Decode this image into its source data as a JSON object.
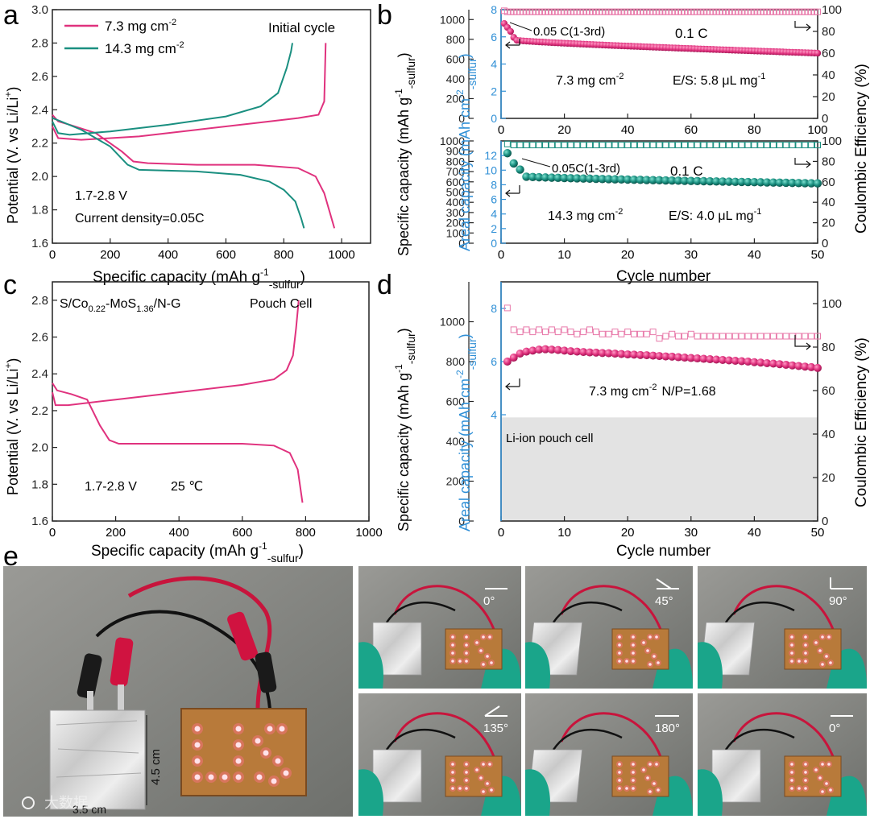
{
  "colors": {
    "pink": "#e0327e",
    "teal": "#1a8f80",
    "blue": "#2f8fd6",
    "pinkLight": "#e87aaa",
    "gray": "#e6e6e6"
  },
  "panel_letters": [
    "a",
    "b",
    "c",
    "d",
    "e"
  ],
  "chart_data": [
    {
      "id": "a",
      "type": "line",
      "title": "Initial cycle",
      "xlabel": "Specific capacity (mAh g-1-sulfur)",
      "xlabel_parts": [
        "Specific capacity (mAh g",
        "-1",
        "-sulfur",
        ")"
      ],
      "ylabel": "Potential (V. vs Li/Li+)",
      "ylabel_parts": [
        "Potential (V. vs Li/Li",
        "+",
        ")"
      ],
      "xlim": [
        0,
        1100
      ],
      "ylim": [
        1.6,
        3.0
      ],
      "xticks": [
        "0",
        "200",
        "400",
        "600",
        "800",
        "1000"
      ],
      "yticks": [
        "1.6",
        "1.8",
        "2.0",
        "2.2",
        "2.4",
        "2.6",
        "2.8",
        "3.0"
      ],
      "legend": [
        {
          "label": "7.3 mg cm-2",
          "base": "7.3 mg cm",
          "sup": "-2"
        },
        {
          "label": "14.3 mg cm-2",
          "base": "14.3 mg cm",
          "sup": "-2"
        }
      ],
      "annotations": [
        "1.7-2.8 V",
        "Current density=0.05C"
      ],
      "series": [
        {
          "name": "7.3 mg cm-2 discharge",
          "x": [
            0,
            20,
            60,
            150,
            240,
            280,
            330,
            500,
            700,
            850,
            910,
            940,
            960,
            975
          ],
          "y": [
            2.37,
            2.33,
            2.31,
            2.26,
            2.15,
            2.09,
            2.08,
            2.07,
            2.07,
            2.05,
            2.0,
            1.9,
            1.78,
            1.69
          ]
        },
        {
          "name": "7.3 mg cm-2 charge",
          "x": [
            0,
            20,
            100,
            300,
            500,
            700,
            850,
            920,
            940,
            945
          ],
          "y": [
            2.3,
            2.23,
            2.22,
            2.24,
            2.28,
            2.32,
            2.35,
            2.37,
            2.45,
            2.8
          ]
        },
        {
          "name": "14.3 mg cm-2 discharge",
          "x": [
            0,
            30,
            100,
            200,
            260,
            300,
            500,
            650,
            750,
            800,
            840,
            860,
            870
          ],
          "y": [
            2.35,
            2.33,
            2.28,
            2.18,
            2.07,
            2.04,
            2.03,
            2.01,
            1.97,
            1.92,
            1.85,
            1.75,
            1.69
          ]
        },
        {
          "name": "14.3 mg cm-2 charge",
          "x": [
            0,
            20,
            60,
            200,
            400,
            600,
            720,
            780,
            810,
            825,
            830
          ],
          "y": [
            2.33,
            2.26,
            2.25,
            2.27,
            2.31,
            2.36,
            2.42,
            2.5,
            2.65,
            2.75,
            2.8
          ]
        }
      ]
    },
    {
      "id": "b-top",
      "type": "scatter",
      "xlabel": "Cycle number",
      "ylabel_left": "Specific capacity (mAh g-1-sulfur)",
      "ylabel_left_parts": [
        "Specific capacity (mAh g",
        "-1",
        "-sulfur",
        ")"
      ],
      "ylabel_inner": "Areal capacity (mAh cm-2-sulfur)",
      "ylabel_inner_parts": [
        "Areal capacity (mAh cm",
        "-2",
        "-sulfur",
        ")"
      ],
      "ylabel_right": "Coulombic Efficiency (%)",
      "xlim": [
        0,
        100
      ],
      "ylim_specific": [
        0,
        1100
      ],
      "ylim_areal": [
        0,
        8
      ],
      "ylim_ce": [
        0,
        100
      ],
      "xticks": [
        "0",
        "20",
        "40",
        "60",
        "80",
        "100"
      ],
      "yticks_specific": [
        "0",
        "200",
        "400",
        "600",
        "800",
        "1000"
      ],
      "yticks_areal": [
        "0",
        "2",
        "4",
        "6",
        "8"
      ],
      "yticks_ce": [
        "0",
        "20",
        "40",
        "60",
        "80",
        "100"
      ],
      "annotations": [
        "0.05 C(1-3rd)",
        "0.1 C"
      ],
      "loading_label": "7.3 mg cm-2",
      "loading_base": "7.3 mg cm",
      "loading_sup": "-2",
      "es_label": "E/S: 5.8 μL mg-1",
      "es_base": "E/S: 5.8 μL mg",
      "es_sup": "-1",
      "capacity_start": [
        960,
        920,
        880,
        820,
        790
      ],
      "capacity_end": 660,
      "cycles": 100,
      "ce_value": 98
    },
    {
      "id": "b-bottom",
      "type": "scatter",
      "xlabel": "Cycle number",
      "xlim": [
        0,
        50
      ],
      "ylim_specific": [
        0,
        1000
      ],
      "ylim_areal": [
        0,
        14
      ],
      "ylim_ce": [
        0,
        100
      ],
      "xticks": [
        "0",
        "10",
        "20",
        "30",
        "40",
        "50"
      ],
      "yticks_specific": [
        "0",
        "100",
        "200",
        "300",
        "400",
        "500",
        "600",
        "700",
        "800",
        "900",
        "1000"
      ],
      "yticks_areal": [
        "0",
        "2",
        "4",
        "6",
        "8",
        "10",
        "12"
      ],
      "yticks_ce": [
        "0",
        "20",
        "40",
        "60",
        "80",
        "100"
      ],
      "annotations": [
        "0.05C(1-3rd)",
        "0.1 C"
      ],
      "loading_label": "14.3 mg cm-2",
      "loading_base": "14.3 mg cm",
      "loading_sup": "-2",
      "es_label": "E/S: 4.0 μL mg-1",
      "es_base": "E/S: 4.0 μL mg",
      "es_sup": "-1",
      "capacity_start": [
        880,
        780,
        720,
        650
      ],
      "capacity_end": 585,
      "cycles": 50,
      "ce_value": 96
    },
    {
      "id": "c",
      "type": "line",
      "xlabel": "Specific capacity (mAh g-1-sulfur)",
      "xlabel_parts": [
        "Specific capacity (mAh g",
        "-1",
        "-sulfur",
        ")"
      ],
      "ylabel": "Potential (V. vs Li/Li+)",
      "ylabel_parts": [
        "Potential (V. vs Li/Li",
        "+",
        ")"
      ],
      "xlim": [
        0,
        1000
      ],
      "ylim": [
        1.6,
        2.9
      ],
      "xticks": [
        "0",
        "200",
        "400",
        "600",
        "800",
        "1000"
      ],
      "yticks": [
        "1.6",
        "1.8",
        "2.0",
        "2.2",
        "2.4",
        "2.6",
        "2.8"
      ],
      "label_material": "S/Co0.22-MoS1.36/N-G",
      "label_material_parts": [
        "S/Co",
        "0.22",
        "-MoS",
        "1.36",
        "/N-G"
      ],
      "label_cell": "Pouch Cell",
      "annotations": [
        "1.7-2.8 V",
        "25 ℃"
      ],
      "series": [
        {
          "name": "discharge",
          "x": [
            0,
            15,
            60,
            110,
            150,
            180,
            210,
            400,
            600,
            700,
            750,
            775,
            790
          ],
          "y": [
            2.35,
            2.31,
            2.29,
            2.26,
            2.12,
            2.04,
            2.02,
            2.02,
            2.02,
            2.01,
            1.97,
            1.88,
            1.7
          ]
        },
        {
          "name": "charge",
          "x": [
            0,
            10,
            50,
            200,
            400,
            600,
            700,
            740,
            760,
            770,
            778
          ],
          "y": [
            2.3,
            2.23,
            2.23,
            2.26,
            2.3,
            2.34,
            2.37,
            2.42,
            2.5,
            2.65,
            2.8
          ]
        }
      ]
    },
    {
      "id": "d",
      "type": "scatter",
      "xlabel": "Cycle number",
      "ylabel_left": "Specific capacity (mAh g-1-sulfur)",
      "ylabel_left_parts": [
        "Specific capacity (mAh g",
        "-1",
        "-sulfur",
        ")"
      ],
      "ylabel_inner": "Areal capacity (mAh cm-2-sulfur)",
      "ylabel_inner_parts": [
        "Areal capacity (mAh cm",
        "-2",
        "-sulfur",
        ")"
      ],
      "ylabel_right": "Coulombic Efficiency (%)",
      "xlim": [
        0,
        50
      ],
      "ylim_specific": [
        0,
        1200
      ],
      "ylim_areal": [
        0,
        9
      ],
      "ylim_ce": [
        0,
        110
      ],
      "xticks": [
        "0",
        "10",
        "20",
        "30",
        "40",
        "50"
      ],
      "yticks_specific": [
        "0",
        "200",
        "400",
        "600",
        "800",
        "1000"
      ],
      "yticks_areal": [
        "4",
        "6",
        "8"
      ],
      "yticks_ce": [
        "0",
        "20",
        "40",
        "60",
        "80",
        "100"
      ],
      "annotations": [
        "Li-ion pouch cell"
      ],
      "loading_label": "7.3 mg cm-2 N/P=1.68",
      "loading_base": "7.3 mg cm",
      "loading_sup": "-2",
      "loading_np": "N/P=1.68",
      "shaded_band_top_specific": 520,
      "capacity_points": [
        800,
        820,
        840,
        850,
        855,
        860,
        862,
        860,
        858,
        855,
        852,
        850,
        848,
        846,
        845,
        843,
        842,
        840,
        838,
        836,
        835,
        833,
        832,
        830,
        828,
        826,
        825,
        822,
        820,
        818,
        816,
        814,
        812,
        810,
        808,
        806,
        804,
        802,
        800,
        797,
        795,
        792,
        790,
        787,
        784,
        781,
        778,
        775,
        772,
        768
      ],
      "ce_points": [
        98,
        88,
        87,
        88,
        87,
        88,
        87,
        88,
        87,
        88,
        87,
        86,
        87,
        88,
        87,
        86,
        86,
        87,
        86,
        87,
        86,
        86,
        86,
        87,
        84,
        85,
        86,
        85,
        85,
        86,
        85,
        85,
        85,
        85,
        85,
        85,
        85,
        85,
        85,
        85,
        85,
        85,
        85,
        85,
        85,
        85,
        85,
        85,
        85,
        85
      ]
    }
  ],
  "photos": {
    "main": {
      "dim_height": "4.5 cm",
      "dim_width": "3.5 cm",
      "logo_text": "LIS"
    },
    "angles": [
      "0°",
      "45°",
      "90°",
      "135°",
      "180°",
      "0°"
    ],
    "watermark": "大数据"
  }
}
